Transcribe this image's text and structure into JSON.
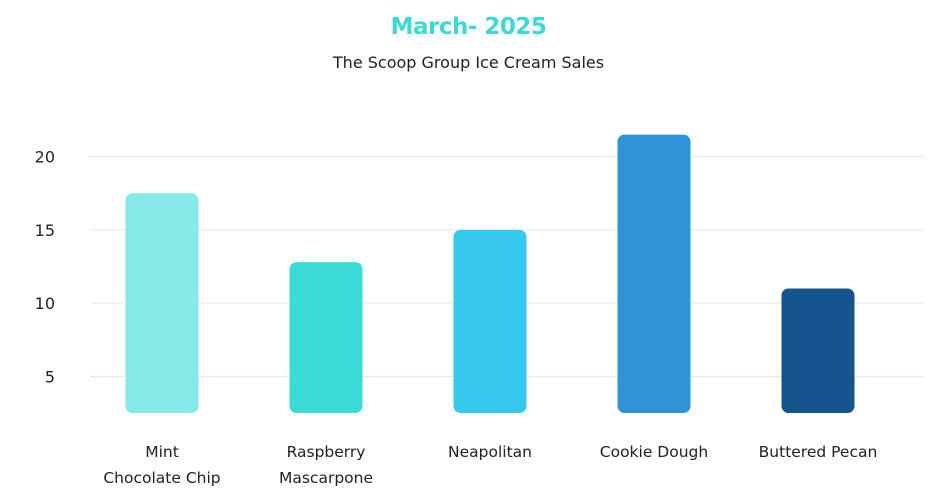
{
  "chart_data": {
    "type": "bar",
    "title": "March- 2025",
    "subtitle": "The Scoop Group Ice Cream Sales",
    "xlabel": "",
    "ylabel": "",
    "categories": [
      "Mint Chocolate Chip",
      "Raspberry Mascarpone",
      "Neapolitan",
      "Cookie Dough",
      "Buttered Pecan"
    ],
    "category_lines": [
      [
        "Mint",
        "Chocolate Chip"
      ],
      [
        "Raspberry",
        "Mascarpone"
      ],
      [
        "Neapolitan"
      ],
      [
        "Cookie Dough"
      ],
      [
        "Buttered Pecan"
      ]
    ],
    "values": [
      17.5,
      12.8,
      15.0,
      21.5,
      11.0
    ],
    "colors": [
      "#87e8e8",
      "#3ddbd8",
      "#36c9ee",
      "#2f93d8",
      "#15548c"
    ],
    "y_ticks": [
      5,
      10,
      15,
      20
    ],
    "ylim": [
      2.5,
      22
    ],
    "grid": true,
    "legend": "none"
  }
}
